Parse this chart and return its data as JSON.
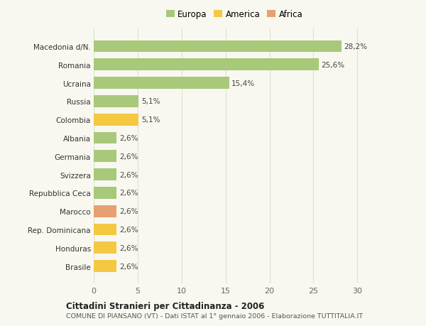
{
  "categories": [
    "Brasile",
    "Honduras",
    "Rep. Dominicana",
    "Marocco",
    "Repubblica Ceca",
    "Svizzera",
    "Germania",
    "Albania",
    "Colombia",
    "Russia",
    "Ucraina",
    "Romania",
    "Macedonia d/N."
  ],
  "values": [
    2.6,
    2.6,
    2.6,
    2.6,
    2.6,
    2.6,
    2.6,
    2.6,
    5.1,
    5.1,
    15.4,
    25.6,
    28.2
  ],
  "labels": [
    "2,6%",
    "2,6%",
    "2,6%",
    "2,6%",
    "2,6%",
    "2,6%",
    "2,6%",
    "2,6%",
    "5,1%",
    "5,1%",
    "15,4%",
    "25,6%",
    "28,2%"
  ],
  "colors": [
    "#f5c842",
    "#f5c842",
    "#f5c842",
    "#e8a070",
    "#a8c87a",
    "#a8c87a",
    "#a8c87a",
    "#a8c87a",
    "#f5c842",
    "#a8c87a",
    "#a8c87a",
    "#a8c87a",
    "#a8c87a"
  ],
  "legend": [
    {
      "label": "Europa",
      "color": "#a8c87a"
    },
    {
      "label": "America",
      "color": "#f5c842"
    },
    {
      "label": "Africa",
      "color": "#e8a070"
    }
  ],
  "xlim": [
    0,
    32
  ],
  "xticks": [
    0,
    5,
    10,
    15,
    20,
    25,
    30
  ],
  "title": "Cittadini Stranieri per Cittadinanza - 2006",
  "subtitle": "COMUNE DI PIANSANO (VT) - Dati ISTAT al 1° gennaio 2006 - Elaborazione TUTTITALIA.IT",
  "background_color": "#f8f8f0",
  "grid_color": "#e0e0d0"
}
